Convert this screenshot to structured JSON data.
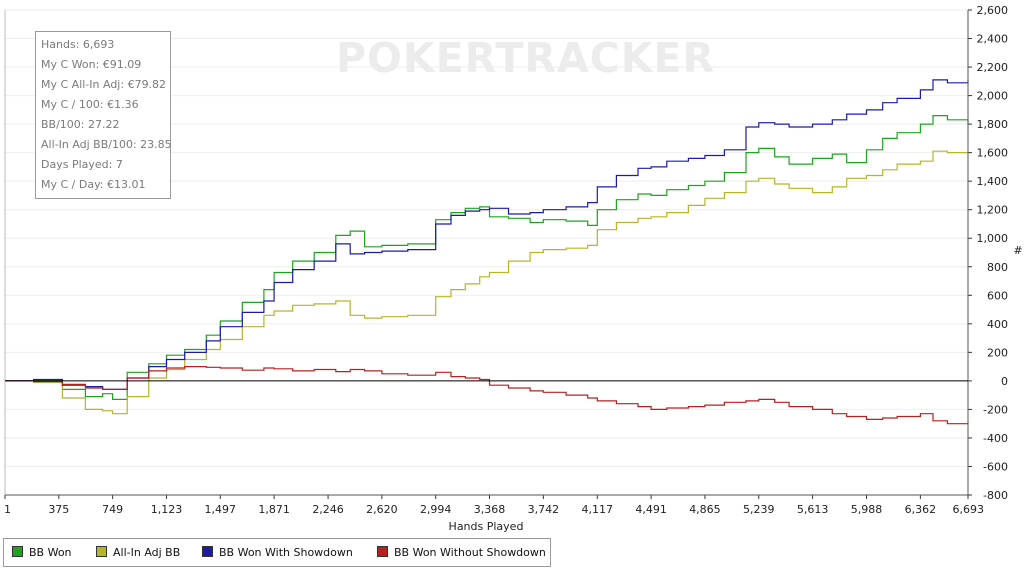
{
  "watermark": "POKERTRACKER",
  "stats": {
    "lines": [
      "Hands: 6,693",
      "My C Won: €91.09",
      "My C All-In Adj: €79.82",
      "My C / 100: €1.36",
      "BB/100: 27.22",
      "All-In Adj BB/100: 23.85",
      "Days Played: 7",
      "My C / Day: €13.01"
    ]
  },
  "chart_data": {
    "type": "line",
    "title": "",
    "xlabel": "Hands Played",
    "ylabel": "#",
    "xlim": [
      1,
      6693
    ],
    "ylim": [
      -800,
      2600
    ],
    "x_ticks": [
      "1",
      "375",
      "749",
      "1,123",
      "1,497",
      "1,871",
      "2,246",
      "2,620",
      "2,994",
      "3,368",
      "3,742",
      "4,117",
      "4,491",
      "4,865",
      "5,239",
      "5,613",
      "5,988",
      "6,362",
      "6,693"
    ],
    "x_tick_values": [
      1,
      375,
      749,
      1123,
      1497,
      1871,
      2246,
      2620,
      2994,
      3368,
      3742,
      4117,
      4491,
      4865,
      5239,
      5613,
      5988,
      6362,
      6693
    ],
    "y_ticks": [
      "2,600",
      "2,400",
      "2,200",
      "2,000",
      "1,800",
      "1,600",
      "1,400",
      "1,200",
      "1,000",
      "800",
      "600",
      "400",
      "200",
      "0",
      "-200",
      "-400",
      "-600",
      "-800"
    ],
    "y_tick_values": [
      2600,
      2400,
      2200,
      2000,
      1800,
      1600,
      1400,
      1200,
      1000,
      800,
      600,
      400,
      200,
      0,
      -200,
      -400,
      -600,
      -800
    ],
    "legend_position": "bottom-left",
    "series": [
      {
        "name": "BB Won",
        "color": "#1fa31f",
        "x": [
          1,
          200,
          400,
          560,
          680,
          749,
          850,
          1000,
          1123,
          1250,
          1400,
          1497,
          1650,
          1800,
          1871,
          2000,
          2150,
          2300,
          2400,
          2500,
          2620,
          2800,
          2994,
          3100,
          3200,
          3300,
          3368,
          3500,
          3650,
          3742,
          3900,
          4050,
          4117,
          4250,
          4400,
          4491,
          4600,
          4750,
          4865,
          5000,
          5150,
          5239,
          5350,
          5450,
          5613,
          5750,
          5850,
          5988,
          6100,
          6200,
          6362,
          6450,
          6550,
          6693
        ],
        "y": [
          0,
          5,
          -60,
          -110,
          -90,
          -130,
          60,
          120,
          180,
          220,
          320,
          420,
          550,
          640,
          760,
          840,
          900,
          1020,
          1050,
          940,
          950,
          960,
          1130,
          1180,
          1210,
          1220,
          1150,
          1140,
          1110,
          1130,
          1120,
          1090,
          1200,
          1270,
          1310,
          1300,
          1340,
          1370,
          1400,
          1460,
          1600,
          1630,
          1570,
          1520,
          1560,
          1590,
          1530,
          1620,
          1700,
          1740,
          1800,
          1860,
          1830,
          1800
        ]
      },
      {
        "name": "All-In Adj BB",
        "color": "#b5b52a",
        "x": [
          1,
          200,
          400,
          560,
          680,
          749,
          850,
          1000,
          1123,
          1250,
          1400,
          1497,
          1650,
          1800,
          1871,
          2000,
          2150,
          2300,
          2400,
          2500,
          2620,
          2800,
          2994,
          3100,
          3200,
          3300,
          3368,
          3500,
          3650,
          3742,
          3900,
          4050,
          4117,
          4250,
          4400,
          4491,
          4600,
          4750,
          4865,
          5000,
          5150,
          5239,
          5350,
          5450,
          5613,
          5750,
          5850,
          5988,
          6100,
          6200,
          6362,
          6450,
          6550,
          6693
        ],
        "y": [
          0,
          -10,
          -120,
          -200,
          -210,
          -230,
          -110,
          20,
          80,
          150,
          220,
          290,
          380,
          460,
          490,
          530,
          540,
          560,
          460,
          440,
          450,
          460,
          590,
          640,
          680,
          730,
          760,
          840,
          900,
          920,
          930,
          950,
          1060,
          1110,
          1140,
          1150,
          1180,
          1230,
          1280,
          1320,
          1400,
          1420,
          1380,
          1350,
          1320,
          1360,
          1420,
          1440,
          1480,
          1520,
          1540,
          1610,
          1600,
          1590
        ]
      },
      {
        "name": "BB Won With Showdown",
        "color": "#1b1ba8",
        "x": [
          1,
          200,
          400,
          560,
          680,
          749,
          850,
          1000,
          1123,
          1250,
          1400,
          1497,
          1650,
          1800,
          1871,
          2000,
          2150,
          2300,
          2400,
          2500,
          2620,
          2800,
          2994,
          3100,
          3200,
          3300,
          3368,
          3500,
          3650,
          3742,
          3900,
          4050,
          4117,
          4250,
          4400,
          4491,
          4600,
          4750,
          4865,
          5000,
          5150,
          5239,
          5350,
          5450,
          5613,
          5750,
          5850,
          5988,
          6100,
          6200,
          6362,
          6450,
          6550,
          6693
        ],
        "y": [
          0,
          10,
          -30,
          -40,
          -60,
          -60,
          20,
          100,
          150,
          200,
          280,
          380,
          480,
          560,
          690,
          780,
          840,
          960,
          890,
          900,
          910,
          920,
          1100,
          1160,
          1190,
          1200,
          1210,
          1170,
          1180,
          1200,
          1220,
          1250,
          1360,
          1440,
          1490,
          1500,
          1540,
          1560,
          1580,
          1620,
          1780,
          1810,
          1800,
          1780,
          1800,
          1830,
          1870,
          1900,
          1950,
          1980,
          2040,
          2110,
          2090,
          2110
        ]
      },
      {
        "name": "BB Won Without Showdown",
        "color": "#b52020",
        "x": [
          1,
          200,
          400,
          560,
          680,
          749,
          850,
          1000,
          1123,
          1250,
          1400,
          1497,
          1650,
          1800,
          1871,
          2000,
          2150,
          2300,
          2400,
          2500,
          2620,
          2800,
          2994,
          3100,
          3200,
          3300,
          3368,
          3500,
          3650,
          3742,
          3900,
          4050,
          4117,
          4250,
          4400,
          4491,
          4600,
          4750,
          4865,
          5000,
          5150,
          5239,
          5350,
          5450,
          5613,
          5750,
          5850,
          5988,
          6100,
          6200,
          6362,
          6450,
          6550,
          6693
        ],
        "y": [
          0,
          -5,
          -25,
          -50,
          -60,
          -60,
          20,
          70,
          90,
          100,
          95,
          90,
          75,
          90,
          85,
          70,
          80,
          65,
          80,
          70,
          50,
          40,
          60,
          30,
          20,
          10,
          -30,
          -50,
          -70,
          -80,
          -100,
          -120,
          -140,
          -160,
          -180,
          -200,
          -190,
          -180,
          -170,
          -150,
          -140,
          -130,
          -150,
          -180,
          -200,
          -230,
          -250,
          -270,
          -260,
          -250,
          -230,
          -280,
          -300,
          -290
        ]
      }
    ]
  }
}
